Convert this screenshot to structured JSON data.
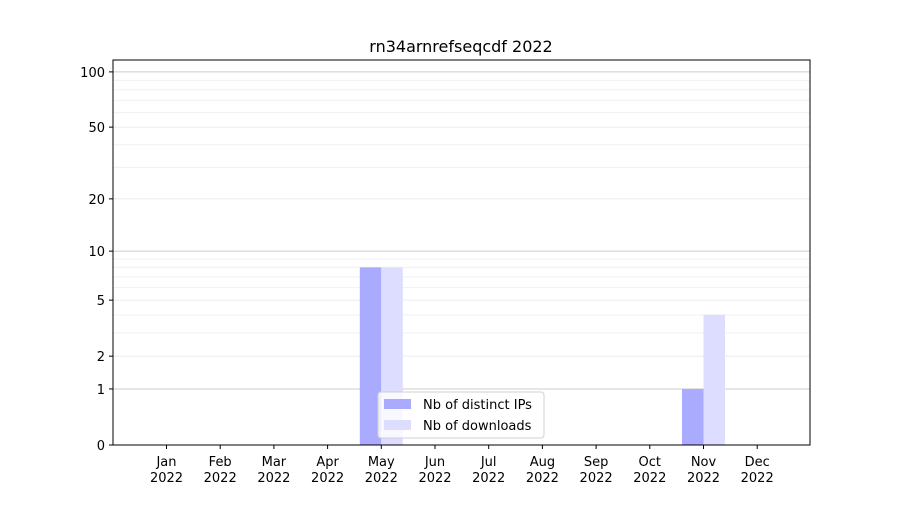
{
  "chart_data": {
    "type": "bar",
    "title": "rn34arnrefseqcdf 2022",
    "xlabel": "",
    "ylabel": "",
    "y_scale": "log(1+y)",
    "ylim": [
      0,
      116
    ],
    "y_ticks": [
      0,
      1,
      2,
      5,
      10,
      20,
      50,
      100
    ],
    "grid": true,
    "legend_placement": "lower center",
    "categories": [
      "Jan\n2022",
      "Feb\n2022",
      "Mar\n2022",
      "Apr\n2022",
      "May\n2022",
      "Jun\n2022",
      "Jul\n2022",
      "Aug\n2022",
      "Sep\n2022",
      "Oct\n2022",
      "Nov\n2022",
      "Dec\n2022"
    ],
    "series": [
      {
        "name": "Nb of distinct IPs",
        "color": "#aaaaff",
        "values": [
          0,
          0,
          0,
          0,
          8,
          0,
          0,
          0,
          0,
          0,
          1,
          0
        ]
      },
      {
        "name": "Nb of downloads",
        "color": "#ddddff",
        "values": [
          0,
          0,
          0,
          0,
          8,
          0,
          0,
          0,
          0,
          0,
          4,
          0
        ]
      }
    ]
  }
}
